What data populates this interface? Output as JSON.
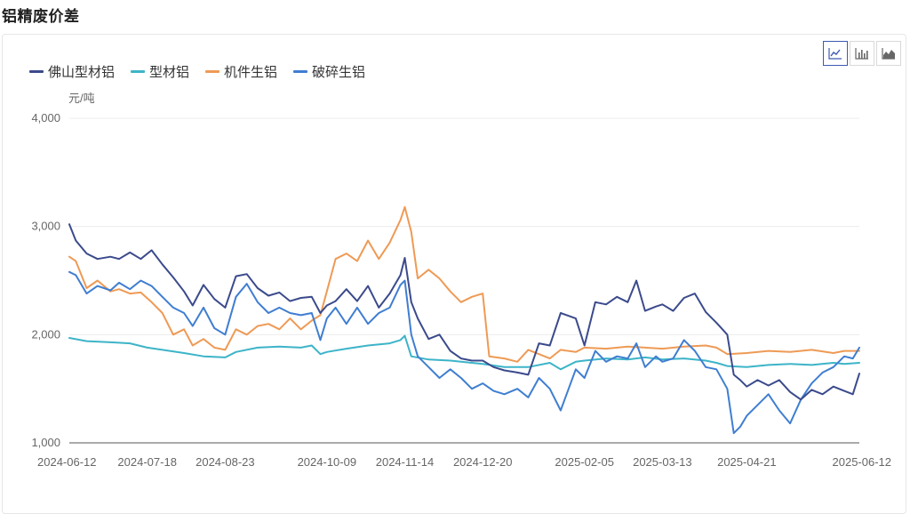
{
  "page": {
    "title": "铝精废价差"
  },
  "toolbar": {
    "buttons": [
      {
        "icon": "line-chart-icon",
        "active": true
      },
      {
        "icon": "bar-chart-icon",
        "active": false
      },
      {
        "icon": "area-chart-icon",
        "active": false
      }
    ]
  },
  "chart_data": {
    "type": "line",
    "unit": "元/吨",
    "ylim": [
      1000,
      4000
    ],
    "yticks": [
      "1,000",
      "2,000",
      "3,000",
      "4,000"
    ],
    "yticks_values": [
      1000,
      2000,
      3000,
      4000
    ],
    "xlim": [
      "2024-06-12",
      "2025-06-12"
    ],
    "xticks": [
      "2024-06-12",
      "2024-07-18",
      "2024-08-23",
      "2024-10-09",
      "2024-11-14",
      "2024-12-20",
      "2025-02-05",
      "2025-03-13",
      "2025-04-21",
      "2025-06-12"
    ],
    "legend_position": "top-left",
    "grid": true,
    "series": [
      {
        "name": "佛山型材铝",
        "color": "#3b4a8c",
        "points": [
          [
            "2024-06-12",
            3020
          ],
          [
            "2024-06-15",
            2870
          ],
          [
            "2024-06-20",
            2750
          ],
          [
            "2024-06-25",
            2700
          ],
          [
            "2024-07-01",
            2720
          ],
          [
            "2024-07-05",
            2700
          ],
          [
            "2024-07-10",
            2760
          ],
          [
            "2024-07-15",
            2700
          ],
          [
            "2024-07-20",
            2780
          ],
          [
            "2024-07-25",
            2650
          ],
          [
            "2024-07-30",
            2530
          ],
          [
            "2024-08-04",
            2400
          ],
          [
            "2024-08-08",
            2270
          ],
          [
            "2024-08-13",
            2460
          ],
          [
            "2024-08-18",
            2330
          ],
          [
            "2024-08-23",
            2250
          ],
          [
            "2024-08-28",
            2540
          ],
          [
            "2024-09-02",
            2560
          ],
          [
            "2024-09-07",
            2430
          ],
          [
            "2024-09-12",
            2360
          ],
          [
            "2024-09-17",
            2390
          ],
          [
            "2024-09-22",
            2310
          ],
          [
            "2024-09-27",
            2340
          ],
          [
            "2024-10-02",
            2350
          ],
          [
            "2024-10-06",
            2200
          ],
          [
            "2024-10-09",
            2270
          ],
          [
            "2024-10-13",
            2310
          ],
          [
            "2024-10-18",
            2420
          ],
          [
            "2024-10-23",
            2310
          ],
          [
            "2024-10-28",
            2450
          ],
          [
            "2024-11-02",
            2250
          ],
          [
            "2024-11-07",
            2380
          ],
          [
            "2024-11-12",
            2550
          ],
          [
            "2024-11-14",
            2710
          ],
          [
            "2024-11-17",
            2300
          ],
          [
            "2024-11-20",
            2150
          ],
          [
            "2024-11-25",
            1960
          ],
          [
            "2024-11-30",
            2000
          ],
          [
            "2024-12-05",
            1850
          ],
          [
            "2024-12-10",
            1780
          ],
          [
            "2024-12-15",
            1760
          ],
          [
            "2024-12-20",
            1760
          ],
          [
            "2024-12-25",
            1700
          ],
          [
            "2024-12-30",
            1670
          ],
          [
            "2025-01-05",
            1650
          ],
          [
            "2025-01-10",
            1630
          ],
          [
            "2025-01-15",
            1920
          ],
          [
            "2025-01-20",
            1900
          ],
          [
            "2025-01-25",
            2200
          ],
          [
            "2025-02-01",
            2150
          ],
          [
            "2025-02-05",
            1900
          ],
          [
            "2025-02-10",
            2300
          ],
          [
            "2025-02-15",
            2280
          ],
          [
            "2025-02-20",
            2350
          ],
          [
            "2025-02-25",
            2300
          ],
          [
            "2025-03-01",
            2500
          ],
          [
            "2025-03-05",
            2220
          ],
          [
            "2025-03-10",
            2260
          ],
          [
            "2025-03-13",
            2280
          ],
          [
            "2025-03-18",
            2220
          ],
          [
            "2025-03-23",
            2340
          ],
          [
            "2025-03-28",
            2380
          ],
          [
            "2025-04-02",
            2210
          ],
          [
            "2025-04-07",
            2110
          ],
          [
            "2025-04-12",
            2000
          ],
          [
            "2025-04-15",
            1630
          ],
          [
            "2025-04-18",
            1580
          ],
          [
            "2025-04-21",
            1520
          ],
          [
            "2025-04-26",
            1580
          ],
          [
            "2025-05-01",
            1530
          ],
          [
            "2025-05-06",
            1580
          ],
          [
            "2025-05-11",
            1470
          ],
          [
            "2025-05-16",
            1400
          ],
          [
            "2025-05-21",
            1490
          ],
          [
            "2025-05-26",
            1450
          ],
          [
            "2025-05-31",
            1520
          ],
          [
            "2025-06-05",
            1480
          ],
          [
            "2025-06-09",
            1450
          ],
          [
            "2025-06-12",
            1640
          ]
        ]
      },
      {
        "name": "型材铝",
        "color": "#3db4c8",
        "points": [
          [
            "2024-06-12",
            1970
          ],
          [
            "2024-06-20",
            1940
          ],
          [
            "2024-07-01",
            1930
          ],
          [
            "2024-07-10",
            1920
          ],
          [
            "2024-07-18",
            1880
          ],
          [
            "2024-07-25",
            1860
          ],
          [
            "2024-08-04",
            1830
          ],
          [
            "2024-08-13",
            1800
          ],
          [
            "2024-08-23",
            1790
          ],
          [
            "2024-08-28",
            1840
          ],
          [
            "2024-09-07",
            1880
          ],
          [
            "2024-09-17",
            1890
          ],
          [
            "2024-09-27",
            1880
          ],
          [
            "2024-10-02",
            1900
          ],
          [
            "2024-10-06",
            1820
          ],
          [
            "2024-10-09",
            1840
          ],
          [
            "2024-10-18",
            1870
          ],
          [
            "2024-10-28",
            1900
          ],
          [
            "2024-11-07",
            1920
          ],
          [
            "2024-11-12",
            1950
          ],
          [
            "2024-11-14",
            1990
          ],
          [
            "2024-11-17",
            1800
          ],
          [
            "2024-11-25",
            1770
          ],
          [
            "2024-12-05",
            1760
          ],
          [
            "2024-12-15",
            1740
          ],
          [
            "2024-12-20",
            1730
          ],
          [
            "2024-12-30",
            1700
          ],
          [
            "2025-01-10",
            1700
          ],
          [
            "2025-01-20",
            1740
          ],
          [
            "2025-01-25",
            1680
          ],
          [
            "2025-02-01",
            1750
          ],
          [
            "2025-02-05",
            1760
          ],
          [
            "2025-02-15",
            1780
          ],
          [
            "2025-02-25",
            1770
          ],
          [
            "2025-03-05",
            1790
          ],
          [
            "2025-03-13",
            1770
          ],
          [
            "2025-03-23",
            1780
          ],
          [
            "2025-04-02",
            1760
          ],
          [
            "2025-04-07",
            1740
          ],
          [
            "2025-04-12",
            1710
          ],
          [
            "2025-04-21",
            1700
          ],
          [
            "2025-05-01",
            1720
          ],
          [
            "2025-05-11",
            1730
          ],
          [
            "2025-05-21",
            1720
          ],
          [
            "2025-05-31",
            1740
          ],
          [
            "2025-06-05",
            1730
          ],
          [
            "2025-06-12",
            1740
          ]
        ]
      },
      {
        "name": "机件生铝",
        "color": "#ee9a55",
        "points": [
          [
            "2024-06-12",
            2720
          ],
          [
            "2024-06-15",
            2680
          ],
          [
            "2024-06-20",
            2430
          ],
          [
            "2024-06-25",
            2500
          ],
          [
            "2024-07-01",
            2400
          ],
          [
            "2024-07-05",
            2420
          ],
          [
            "2024-07-10",
            2380
          ],
          [
            "2024-07-15",
            2390
          ],
          [
            "2024-07-20",
            2300
          ],
          [
            "2024-07-25",
            2200
          ],
          [
            "2024-07-30",
            2000
          ],
          [
            "2024-08-04",
            2050
          ],
          [
            "2024-08-08",
            1900
          ],
          [
            "2024-08-13",
            1960
          ],
          [
            "2024-08-18",
            1880
          ],
          [
            "2024-08-23",
            1860
          ],
          [
            "2024-08-28",
            2050
          ],
          [
            "2024-09-02",
            2000
          ],
          [
            "2024-09-07",
            2080
          ],
          [
            "2024-09-12",
            2100
          ],
          [
            "2024-09-17",
            2050
          ],
          [
            "2024-09-22",
            2150
          ],
          [
            "2024-09-27",
            2050
          ],
          [
            "2024-10-02",
            2130
          ],
          [
            "2024-10-06",
            2180
          ],
          [
            "2024-10-09",
            2400
          ],
          [
            "2024-10-13",
            2700
          ],
          [
            "2024-10-18",
            2750
          ],
          [
            "2024-10-23",
            2680
          ],
          [
            "2024-10-28",
            2870
          ],
          [
            "2024-11-02",
            2700
          ],
          [
            "2024-11-07",
            2850
          ],
          [
            "2024-11-12",
            3060
          ],
          [
            "2024-11-14",
            3180
          ],
          [
            "2024-11-17",
            2950
          ],
          [
            "2024-11-20",
            2520
          ],
          [
            "2024-11-25",
            2600
          ],
          [
            "2024-11-30",
            2520
          ],
          [
            "2024-12-05",
            2400
          ],
          [
            "2024-12-10",
            2300
          ],
          [
            "2024-12-15",
            2350
          ],
          [
            "2024-12-20",
            2380
          ],
          [
            "2024-12-23",
            1800
          ],
          [
            "2024-12-30",
            1780
          ],
          [
            "2025-01-05",
            1750
          ],
          [
            "2025-01-10",
            1860
          ],
          [
            "2025-01-15",
            1820
          ],
          [
            "2025-01-20",
            1780
          ],
          [
            "2025-01-25",
            1860
          ],
          [
            "2025-02-01",
            1840
          ],
          [
            "2025-02-05",
            1880
          ],
          [
            "2025-02-15",
            1870
          ],
          [
            "2025-02-25",
            1890
          ],
          [
            "2025-03-05",
            1880
          ],
          [
            "2025-03-13",
            1870
          ],
          [
            "2025-03-23",
            1890
          ],
          [
            "2025-04-02",
            1900
          ],
          [
            "2025-04-07",
            1880
          ],
          [
            "2025-04-12",
            1820
          ],
          [
            "2025-04-21",
            1830
          ],
          [
            "2025-05-01",
            1850
          ],
          [
            "2025-05-11",
            1840
          ],
          [
            "2025-05-21",
            1860
          ],
          [
            "2025-05-31",
            1830
          ],
          [
            "2025-06-05",
            1850
          ],
          [
            "2025-06-12",
            1850
          ]
        ]
      },
      {
        "name": "破碎生铝",
        "color": "#3f7ed1",
        "points": [
          [
            "2024-06-12",
            2580
          ],
          [
            "2024-06-15",
            2550
          ],
          [
            "2024-06-20",
            2380
          ],
          [
            "2024-06-25",
            2450
          ],
          [
            "2024-07-01",
            2410
          ],
          [
            "2024-07-05",
            2480
          ],
          [
            "2024-07-10",
            2420
          ],
          [
            "2024-07-15",
            2500
          ],
          [
            "2024-07-20",
            2450
          ],
          [
            "2024-07-25",
            2350
          ],
          [
            "2024-07-30",
            2250
          ],
          [
            "2024-08-04",
            2200
          ],
          [
            "2024-08-08",
            2080
          ],
          [
            "2024-08-13",
            2250
          ],
          [
            "2024-08-18",
            2060
          ],
          [
            "2024-08-23",
            2000
          ],
          [
            "2024-08-28",
            2350
          ],
          [
            "2024-09-02",
            2470
          ],
          [
            "2024-09-07",
            2300
          ],
          [
            "2024-09-12",
            2200
          ],
          [
            "2024-09-17",
            2250
          ],
          [
            "2024-09-22",
            2200
          ],
          [
            "2024-09-27",
            2180
          ],
          [
            "2024-10-02",
            2200
          ],
          [
            "2024-10-06",
            1950
          ],
          [
            "2024-10-09",
            2150
          ],
          [
            "2024-10-13",
            2250
          ],
          [
            "2024-10-18",
            2100
          ],
          [
            "2024-10-23",
            2250
          ],
          [
            "2024-10-28",
            2100
          ],
          [
            "2024-11-02",
            2200
          ],
          [
            "2024-11-07",
            2250
          ],
          [
            "2024-11-12",
            2460
          ],
          [
            "2024-11-14",
            2500
          ],
          [
            "2024-11-17",
            2000
          ],
          [
            "2024-11-20",
            1800
          ],
          [
            "2024-11-25",
            1700
          ],
          [
            "2024-11-30",
            1600
          ],
          [
            "2024-12-05",
            1680
          ],
          [
            "2024-12-10",
            1600
          ],
          [
            "2024-12-15",
            1500
          ],
          [
            "2024-12-20",
            1550
          ],
          [
            "2024-12-25",
            1480
          ],
          [
            "2024-12-30",
            1450
          ],
          [
            "2025-01-05",
            1500
          ],
          [
            "2025-01-10",
            1420
          ],
          [
            "2025-01-15",
            1600
          ],
          [
            "2025-01-20",
            1500
          ],
          [
            "2025-01-25",
            1300
          ],
          [
            "2025-02-01",
            1680
          ],
          [
            "2025-02-05",
            1600
          ],
          [
            "2025-02-10",
            1850
          ],
          [
            "2025-02-15",
            1750
          ],
          [
            "2025-02-20",
            1800
          ],
          [
            "2025-02-25",
            1780
          ],
          [
            "2025-03-01",
            1920
          ],
          [
            "2025-03-05",
            1700
          ],
          [
            "2025-03-10",
            1800
          ],
          [
            "2025-03-13",
            1750
          ],
          [
            "2025-03-18",
            1780
          ],
          [
            "2025-03-23",
            1950
          ],
          [
            "2025-03-28",
            1850
          ],
          [
            "2025-04-02",
            1700
          ],
          [
            "2025-04-07",
            1680
          ],
          [
            "2025-04-12",
            1500
          ],
          [
            "2025-04-15",
            1090
          ],
          [
            "2025-04-18",
            1150
          ],
          [
            "2025-04-21",
            1250
          ],
          [
            "2025-04-26",
            1350
          ],
          [
            "2025-05-01",
            1450
          ],
          [
            "2025-05-06",
            1300
          ],
          [
            "2025-05-11",
            1180
          ],
          [
            "2025-05-16",
            1400
          ],
          [
            "2025-05-21",
            1550
          ],
          [
            "2025-05-26",
            1650
          ],
          [
            "2025-05-31",
            1700
          ],
          [
            "2025-06-05",
            1800
          ],
          [
            "2025-06-09",
            1780
          ],
          [
            "2025-06-12",
            1880
          ]
        ]
      }
    ]
  }
}
